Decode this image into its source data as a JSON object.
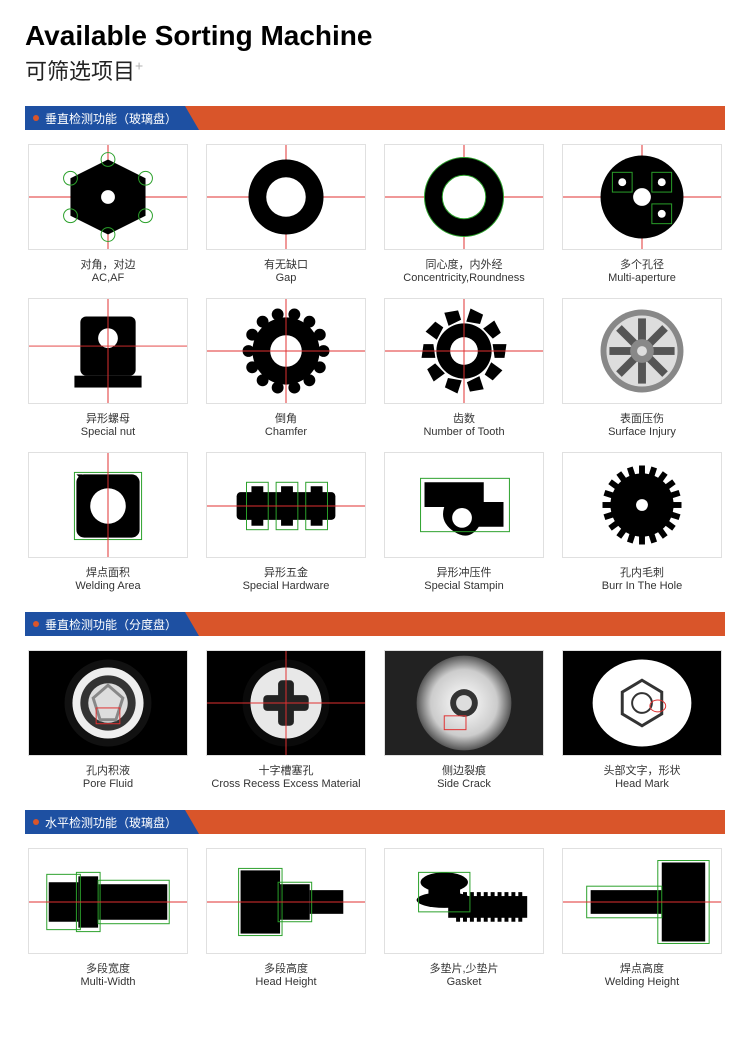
{
  "header": {
    "title_en": "Available Sorting Machine",
    "title_zh": "可筛选项目",
    "plus": "+"
  },
  "colors": {
    "bar_bg": "#d9552a",
    "tab_bg": "#1e50a2",
    "border": "#e0e0e0",
    "guide_red": "#e03030",
    "guide_green": "#2aa02a"
  },
  "sections": [
    {
      "label": "垂直检测功能（玻璃盘）",
      "items": [
        {
          "zh": "对角，对边",
          "en": "AC,AF",
          "icon": "hex"
        },
        {
          "zh": "有无缺口",
          "en": "Gap",
          "icon": "ring"
        },
        {
          "zh": "同心度，内外经",
          "en": "Concentricity,Roundness",
          "icon": "concentric"
        },
        {
          "zh": "多个孔径",
          "en": "Multi-aperture",
          "icon": "multihole"
        },
        {
          "zh": "异形螺母",
          "en": "Special nut",
          "icon": "nut"
        },
        {
          "zh": "倒角",
          "en": "Chamfer",
          "icon": "gear-hollow"
        },
        {
          "zh": "齿数",
          "en": "Number of Tooth",
          "icon": "gear-teeth"
        },
        {
          "zh": "表面压伤",
          "en": "Surface Injury",
          "icon": "rotor"
        },
        {
          "zh": "焊点面积",
          "en": "Welding Area",
          "icon": "weld-sq"
        },
        {
          "zh": "异形五金",
          "en": "Special Hardware",
          "icon": "hardware"
        },
        {
          "zh": "异形冲压件",
          "en": "Special Stampin",
          "icon": "stamp"
        },
        {
          "zh": "孔内毛刺",
          "en": "Burr In The Hole",
          "icon": "gear-solid"
        }
      ]
    },
    {
      "label": "垂直检测功能（分度盘）",
      "items": [
        {
          "zh": "孔内积液",
          "en": "Pore Fluid",
          "icon": "pore"
        },
        {
          "zh": "十字槽塞孔",
          "en": "Cross Recess Excess Material",
          "icon": "cross"
        },
        {
          "zh": "侧边裂痕",
          "en": "Side Crack",
          "icon": "crack"
        },
        {
          "zh": "头部文字，形状",
          "en": "Head Mark",
          "icon": "headmark"
        }
      ]
    },
    {
      "label": "水平检测功能（玻璃盘）",
      "items": [
        {
          "zh": "多段宽度",
          "en": "Multi-Width",
          "icon": "multiw"
        },
        {
          "zh": "多段高度",
          "en": "Head Height",
          "icon": "headh"
        },
        {
          "zh": "多垫片,少垫片",
          "en": "Gasket",
          "icon": "gasket"
        },
        {
          "zh": "焊点高度",
          "en": "Welding Height",
          "icon": "weldh"
        }
      ]
    }
  ]
}
